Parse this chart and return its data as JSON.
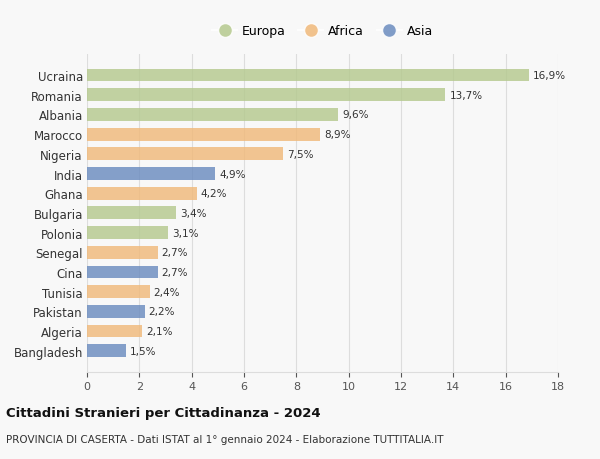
{
  "countries": [
    "Ucraina",
    "Romania",
    "Albania",
    "Marocco",
    "Nigeria",
    "India",
    "Ghana",
    "Bulgaria",
    "Polonia",
    "Senegal",
    "Cina",
    "Tunisia",
    "Pakistan",
    "Algeria",
    "Bangladesh"
  ],
  "values": [
    16.9,
    13.7,
    9.6,
    8.9,
    7.5,
    4.9,
    4.2,
    3.4,
    3.1,
    2.7,
    2.7,
    2.4,
    2.2,
    2.1,
    1.5
  ],
  "labels": [
    "16,9%",
    "13,7%",
    "9,6%",
    "8,9%",
    "7,5%",
    "4,9%",
    "4,2%",
    "3,4%",
    "3,1%",
    "2,7%",
    "2,7%",
    "2,4%",
    "2,2%",
    "2,1%",
    "1,5%"
  ],
  "continents": [
    "Europa",
    "Europa",
    "Europa",
    "Africa",
    "Africa",
    "Asia",
    "Africa",
    "Europa",
    "Europa",
    "Africa",
    "Asia",
    "Africa",
    "Asia",
    "Africa",
    "Asia"
  ],
  "colors": {
    "Europa": "#b5c98e",
    "Africa": "#f0b97a",
    "Asia": "#6b8cbf"
  },
  "legend_labels": [
    "Europa",
    "Africa",
    "Asia"
  ],
  "xlim": [
    0,
    18
  ],
  "xticks": [
    0,
    2,
    4,
    6,
    8,
    10,
    12,
    14,
    16,
    18
  ],
  "title": "Cittadini Stranieri per Cittadinanza - 2024",
  "subtitle": "PROVINCIA DI CASERTA - Dati ISTAT al 1° gennaio 2024 - Elaborazione TUTTITALIA.IT",
  "bg_color": "#f8f8f8",
  "grid_color": "#dddddd",
  "bar_height": 0.65
}
